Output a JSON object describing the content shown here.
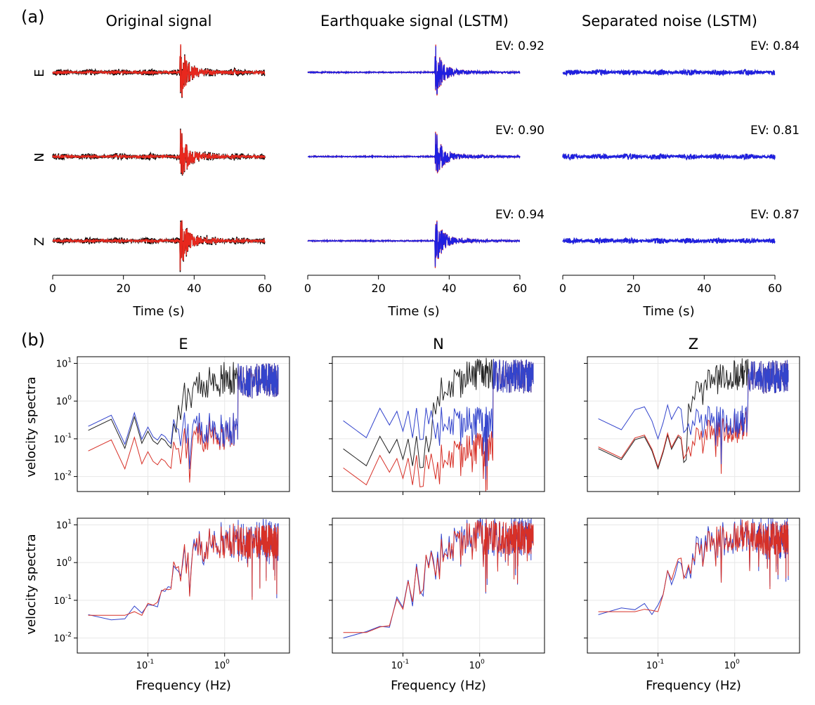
{
  "panel_labels": {
    "a": "(a)",
    "b": "(b)"
  },
  "colors": {
    "original": "#000000",
    "reference": "#e8281e",
    "lstm": "#1f1fe0",
    "noise_ref": "#888888",
    "spectrum_original": "#222222",
    "spectrum_signal_ref": "#d73027",
    "spectrum_signal_lstm": "#3344cc",
    "grid": "#e8e8e8"
  },
  "chart_data": [
    {
      "type": "line",
      "panel": "(a)",
      "column_titles": [
        "Original signal",
        "Earthquake signal (LSTM)",
        "Separated noise (LSTM)"
      ],
      "channels": [
        "E",
        "N",
        "Z"
      ],
      "xlabel": "Time (s)",
      "xlim": [
        0,
        60
      ],
      "xticks": [
        0,
        20,
        40,
        60
      ],
      "arrival_time_s": 36,
      "explained_variance": {
        "Earthquake signal (LSTM)": {
          "E": "EV: 0.92",
          "N": "EV: 0.90",
          "Z": "EV: 0.94"
        },
        "Separated noise (LSTM)": {
          "E": "EV: 0.84",
          "N": "EV: 0.81",
          "Z": "EV: 0.87"
        }
      }
    },
    {
      "type": "line",
      "panel": "(b)",
      "column_titles": [
        "E",
        "N",
        "Z"
      ],
      "xlabel": "Frequency (Hz)",
      "ylabel": "velocity spectra",
      "xscale": "log",
      "yscale": "log",
      "xlim": [
        0.012,
        7
      ],
      "ylim": [
        0.004,
        15
      ],
      "xticks": [
        0.1,
        1
      ],
      "yticks": [
        0.01,
        0.1,
        1,
        10
      ],
      "grid": true,
      "row1_noise_level": {
        "E": 0.14,
        "N": 0.045,
        "Z": 0.045
      },
      "row1_signal_level": {
        "E": 0.04,
        "N": 0.014,
        "Z": 0.05
      },
      "row1_lstm_level": {
        "E": 0.18,
        "N": 0.25,
        "Z": 0.28
      },
      "peak_amplitude": {
        "E": 4,
        "N": 5,
        "Z": 5
      }
    }
  ]
}
